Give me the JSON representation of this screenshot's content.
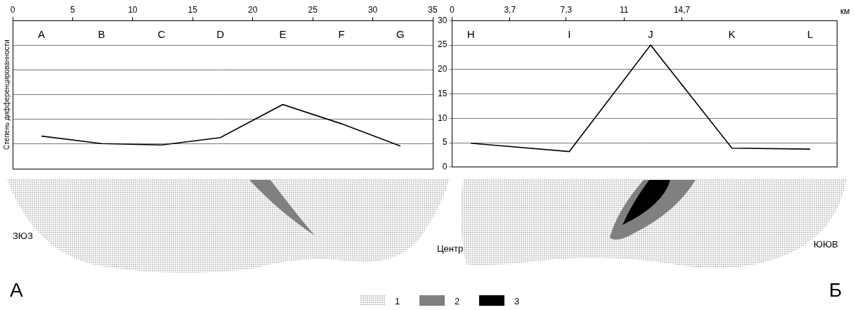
{
  "chart_data": [
    {
      "type": "line",
      "y_label": "Степень дифференцированности",
      "x": [
        2.4,
        7.4,
        12.4,
        17.3,
        22.5,
        27.4,
        32.3
      ],
      "point_labels": [
        "A",
        "B",
        "C",
        "D",
        "E",
        "F",
        "G"
      ],
      "values": [
        6.6,
        5.1,
        4.8,
        6.3,
        13,
        9.1,
        4.6
      ],
      "color": "#000000",
      "marker": "none",
      "xlim": [
        0,
        35
      ],
      "xticks": [
        0,
        5,
        10,
        15,
        20,
        25,
        30,
        35
      ],
      "ylim": [
        0,
        30
      ],
      "yticks": [
        0,
        5,
        10,
        15,
        20,
        25,
        30
      ],
      "grid": true,
      "tick_labels": "x"
    },
    {
      "type": "line",
      "x_label": "км",
      "x": [
        1.2,
        7.5,
        12.7,
        17.9,
        22.9
      ],
      "point_labels": [
        "H",
        "I",
        "J",
        "K",
        "L"
      ],
      "values": [
        4.9,
        3.2,
        25,
        3.9,
        3.7
      ],
      "color": "#000000",
      "marker": "none",
      "xlim": [
        0,
        24.6
      ],
      "xticks": [
        0,
        {
          "value": 3.7,
          "label": "3,7"
        },
        {
          "value": 7.3,
          "label": "7,3"
        },
        11,
        {
          "value": 14.7,
          "label": "14,7"
        }
      ],
      "ylim": [
        0,
        30
      ],
      "yticks": [
        0,
        5,
        10,
        15,
        20,
        25,
        30
      ],
      "grid": true,
      "tick_labels": true
    }
  ],
  "diagram": {
    "left_label": "ЗЮЗ",
    "center_label": "Центр",
    "right_label": "ЮЮВ",
    "panel_left": "А",
    "panel_right": "Б",
    "legend_items": [
      {
        "label": "1",
        "color": "#c8c8c8"
      },
      {
        "label": "2",
        "color": "#808080"
      },
      {
        "label": "3",
        "color": "#000000"
      }
    ]
  }
}
